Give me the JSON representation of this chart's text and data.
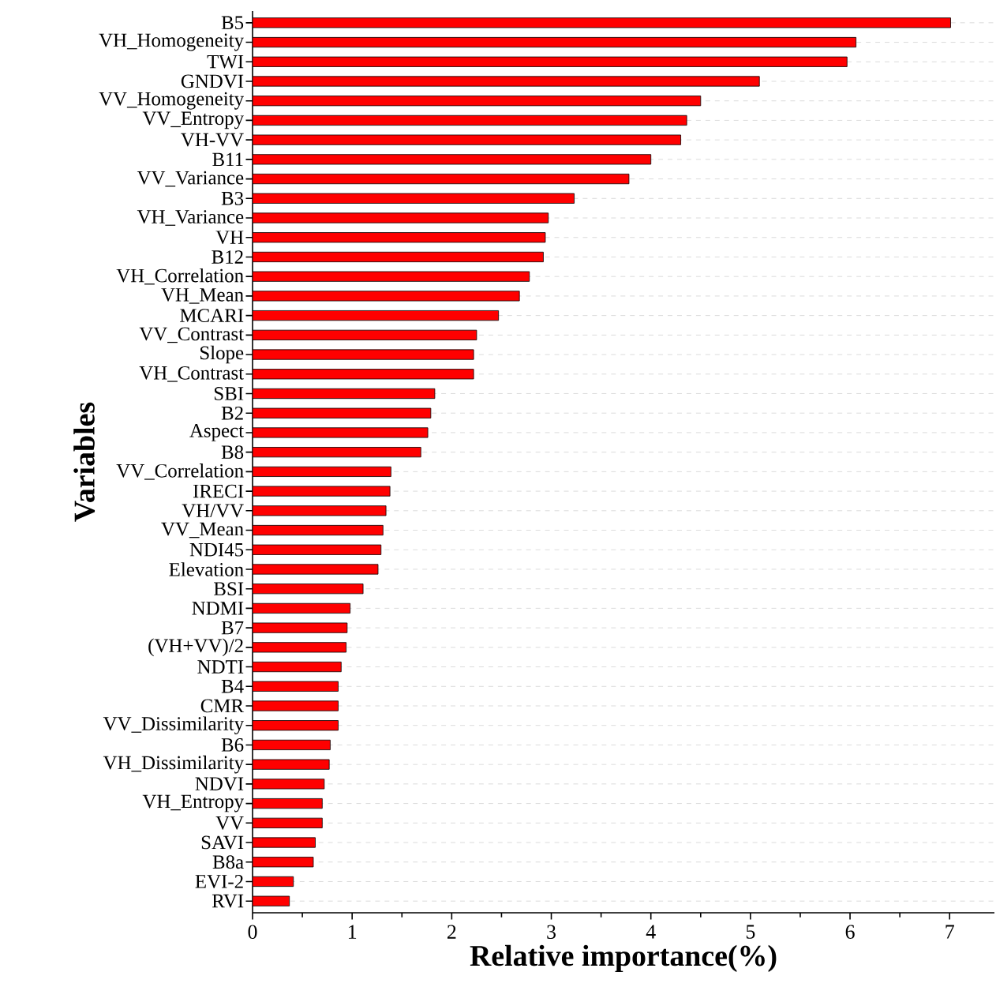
{
  "chart_data": {
    "type": "bar",
    "orientation": "horizontal",
    "xlabel": "Relative importance(%)",
    "ylabel": "Variables",
    "categories": [
      "B5",
      "VH_Homogeneity",
      "TWI",
      "GNDVI",
      "VV_Homogeneity",
      "VV_Entropy",
      "VH-VV",
      "B11",
      "VV_Variance",
      "B3",
      "VH_Variance",
      "VH",
      "B12",
      "VH_Correlation",
      "VH_Mean",
      "MCARI",
      "VV_Contrast",
      "Slope",
      "VH_Contrast",
      "SBI",
      "B2",
      "Aspect",
      "B8",
      "VV_Correlation",
      "IRECI",
      "VH/VV",
      "VV_Mean",
      "NDI45",
      "Elevation",
      "BSI",
      "NDMI",
      "B7",
      "(VH+VV)/2",
      "NDTI",
      "B4",
      "CMR",
      "VV_Dissimilarity",
      "B6",
      "VH_Dissimilarity",
      "NDVI",
      "VH_Entropy",
      "VV",
      "SAVI",
      "B8a",
      "EVI-2",
      "RVI"
    ],
    "values": [
      7.01,
      6.06,
      5.97,
      5.09,
      4.5,
      4.36,
      4.3,
      4.0,
      3.78,
      3.23,
      2.97,
      2.94,
      2.92,
      2.78,
      2.68,
      2.47,
      2.25,
      2.22,
      2.22,
      1.83,
      1.79,
      1.76,
      1.69,
      1.39,
      1.38,
      1.34,
      1.31,
      1.29,
      1.26,
      1.11,
      0.98,
      0.95,
      0.94,
      0.89,
      0.86,
      0.86,
      0.86,
      0.78,
      0.77,
      0.72,
      0.7,
      0.7,
      0.63,
      0.61,
      0.41,
      0.37
    ],
    "color": "#ff0000",
    "xlim": [
      0,
      7.45
    ],
    "xticks": [
      0,
      1,
      2,
      3,
      4,
      5,
      6,
      7
    ],
    "grid": "y"
  }
}
